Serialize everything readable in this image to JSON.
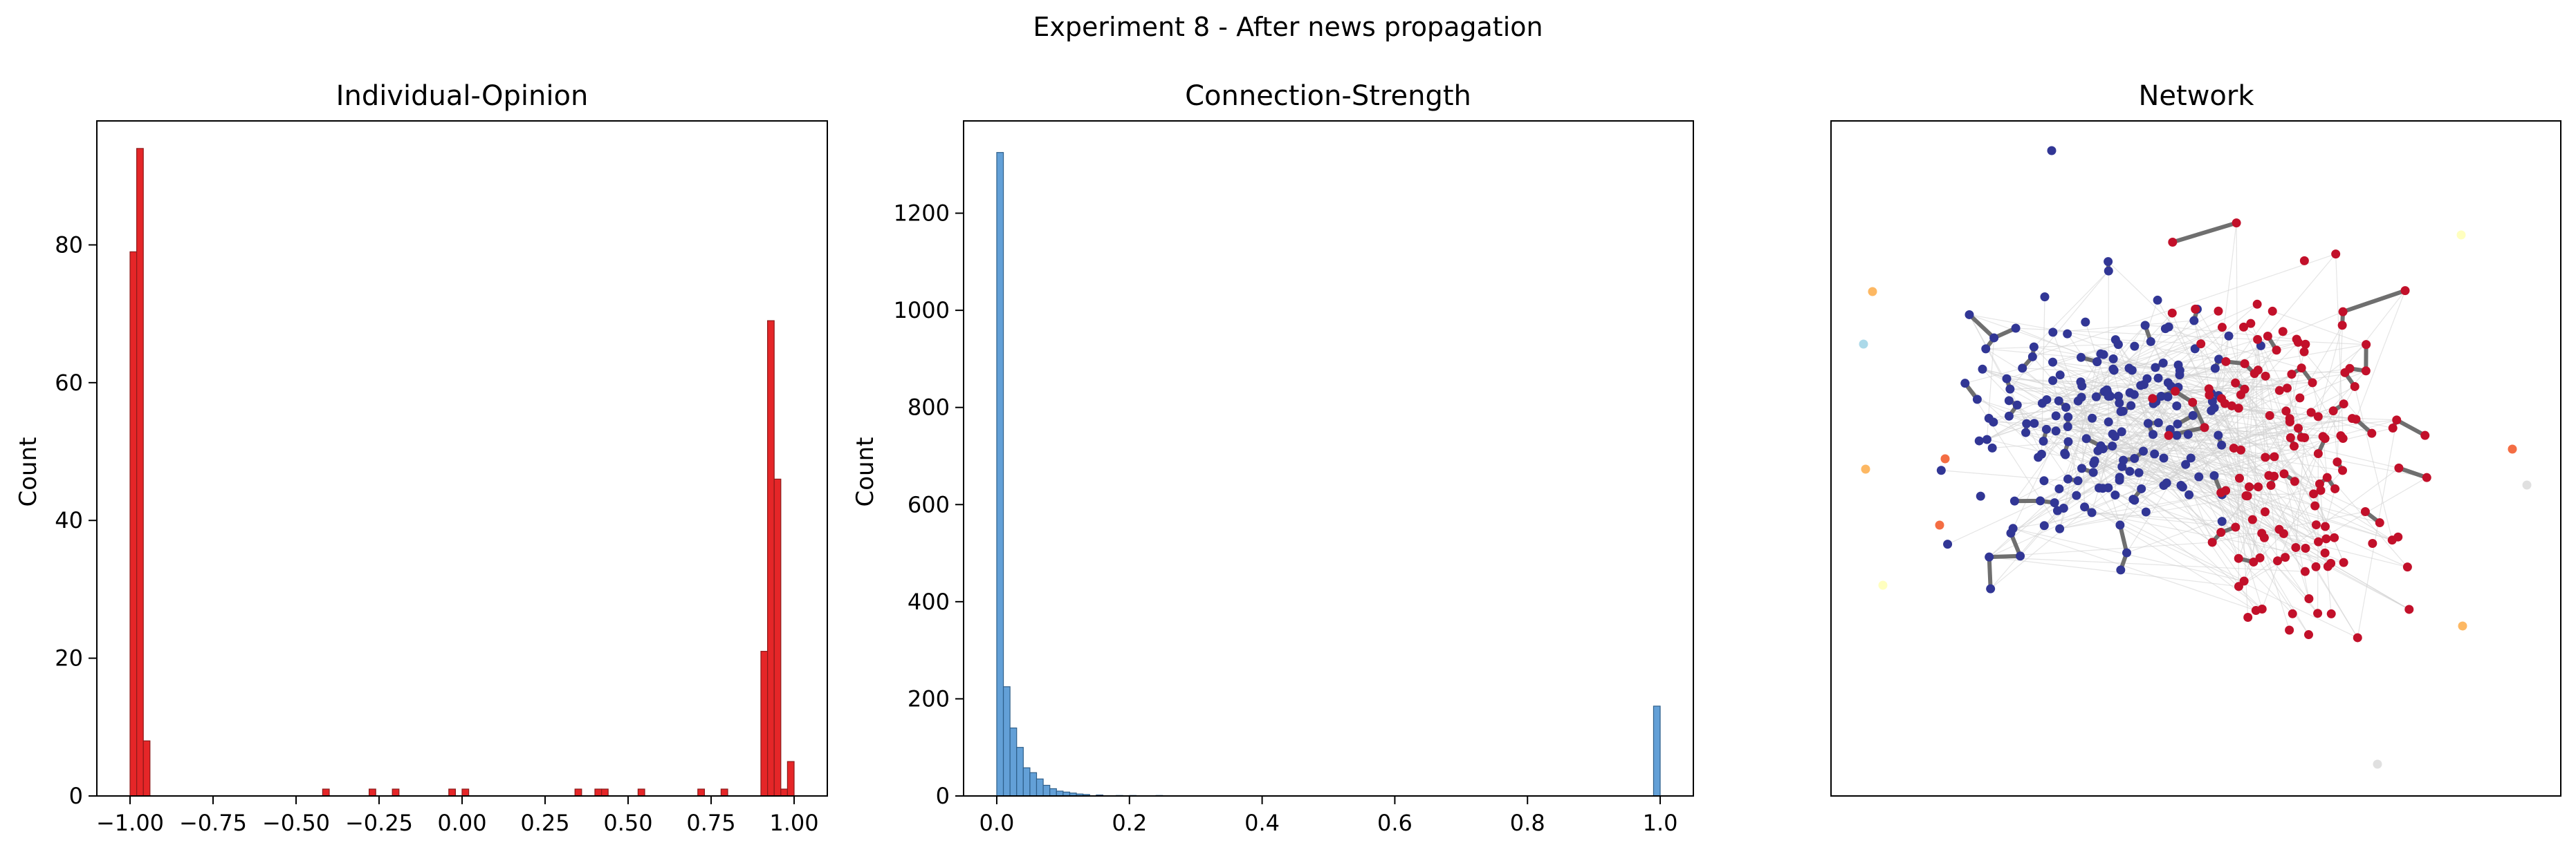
{
  "figure": {
    "suptitle": "Experiment 8 - After news propagation"
  },
  "chart_data": [
    {
      "type": "bar",
      "title": "Individual-Opinion",
      "xlabel": "",
      "ylabel": "Count",
      "xlim": [
        -1.1,
        1.1
      ],
      "ylim": [
        0,
        98
      ],
      "xticks": [
        -1.0,
        -0.75,
        -0.5,
        -0.25,
        0.0,
        0.25,
        0.5,
        0.75,
        1.0
      ],
      "xtick_labels": [
        "−1.00",
        "−0.75",
        "−0.50",
        "−0.25",
        "0.00",
        "0.25",
        "0.50",
        "0.75",
        "1.00"
      ],
      "yticks": [
        0,
        20,
        40,
        60,
        80
      ],
      "ytick_labels": [
        "0",
        "20",
        "40",
        "60",
        "80"
      ],
      "bin_width": 0.02,
      "bins": [
        {
          "x": -1.0,
          "count": 79
        },
        {
          "x": -0.98,
          "count": 94
        },
        {
          "x": -0.96,
          "count": 8
        },
        {
          "x": -0.42,
          "count": 1
        },
        {
          "x": -0.28,
          "count": 1
        },
        {
          "x": -0.21,
          "count": 1
        },
        {
          "x": -0.04,
          "count": 1
        },
        {
          "x": 0.0,
          "count": 1
        },
        {
          "x": 0.34,
          "count": 1
        },
        {
          "x": 0.4,
          "count": 1
        },
        {
          "x": 0.42,
          "count": 1
        },
        {
          "x": 0.53,
          "count": 1
        },
        {
          "x": 0.71,
          "count": 1
        },
        {
          "x": 0.78,
          "count": 1
        },
        {
          "x": 0.9,
          "count": 21
        },
        {
          "x": 0.92,
          "count": 69
        },
        {
          "x": 0.94,
          "count": 46
        },
        {
          "x": 0.96,
          "count": 1
        },
        {
          "x": 0.98,
          "count": 5
        }
      ],
      "color": "#e41a1c",
      "edge_color": "#8b1a1a",
      "grid": false
    },
    {
      "type": "bar",
      "title": "Connection-Strength",
      "xlabel": "",
      "ylabel": "Count",
      "xlim": [
        -0.05,
        1.05
      ],
      "ylim": [
        0,
        1390
      ],
      "xticks": [
        0.0,
        0.2,
        0.4,
        0.6,
        0.8,
        1.0
      ],
      "xtick_labels": [
        "0.0",
        "0.2",
        "0.4",
        "0.6",
        "0.8",
        "1.0"
      ],
      "yticks": [
        0,
        200,
        400,
        600,
        800,
        1000,
        1200
      ],
      "ytick_labels": [
        "0",
        "200",
        "400",
        "600",
        "800",
        "1000",
        "1200"
      ],
      "bin_width": 0.01,
      "bins": [
        {
          "x": 0.0,
          "count": 1325
        },
        {
          "x": 0.01,
          "count": 225
        },
        {
          "x": 0.02,
          "count": 140
        },
        {
          "x": 0.03,
          "count": 100
        },
        {
          "x": 0.04,
          "count": 58
        },
        {
          "x": 0.05,
          "count": 48
        },
        {
          "x": 0.06,
          "count": 35
        },
        {
          "x": 0.07,
          "count": 22
        },
        {
          "x": 0.08,
          "count": 15
        },
        {
          "x": 0.09,
          "count": 10
        },
        {
          "x": 0.1,
          "count": 8
        },
        {
          "x": 0.11,
          "count": 6
        },
        {
          "x": 0.12,
          "count": 4
        },
        {
          "x": 0.13,
          "count": 3
        },
        {
          "x": 0.15,
          "count": 2
        },
        {
          "x": 0.18,
          "count": 1
        },
        {
          "x": 0.2,
          "count": 1
        },
        {
          "x": 0.24,
          "count": 1
        },
        {
          "x": 0.99,
          "count": 185
        }
      ],
      "color": "#5b9bd5",
      "edge_color": "#2f5f8a",
      "grid": false
    },
    {
      "type": "network",
      "title": "Network",
      "axes_ticks": false,
      "node_colors": {
        "negative_cluster": "#313695",
        "positive_cluster": "#c2102a",
        "isolated": [
          "#fdb863",
          "#abd9e9",
          "#f46d43",
          "#ffffbf",
          "#e0e0e0",
          "#fee090"
        ]
      },
      "edge_color_strong": "#6f6f6f",
      "edge_color_weak": "#cfcfcf",
      "clusters": [
        {
          "name": "negative_cluster",
          "node_count": 190
        },
        {
          "name": "positive_cluster",
          "node_count": 150
        }
      ],
      "isolated_node_count": 12
    }
  ]
}
